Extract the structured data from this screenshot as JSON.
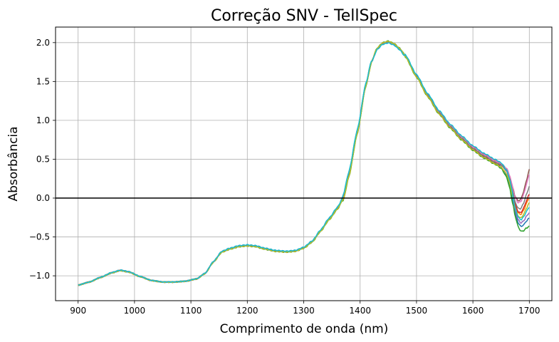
{
  "chart_data": {
    "type": "line",
    "title": "Correção SNV - TellSpec",
    "xlabel": "Comprimento de onda (nm)",
    "ylabel": "Absorbância",
    "xlim": [
      860,
      1740
    ],
    "ylim": [
      -1.32,
      2.2
    ],
    "x_ticks": [
      900,
      1000,
      1100,
      1200,
      1300,
      1400,
      1500,
      1600,
      1700
    ],
    "y_ticks": [
      -1.0,
      -0.5,
      0.0,
      0.5,
      1.0,
      1.5,
      2.0
    ],
    "x_tick_labels": [
      "900",
      "1000",
      "1100",
      "1200",
      "1300",
      "1400",
      "1500",
      "1600",
      "1700"
    ],
    "y_tick_labels": [
      "−1.0",
      "−0.5",
      "0.0",
      "0.5",
      "1.0",
      "1.5",
      "2.0"
    ],
    "grid": true,
    "reference_line": {
      "y": 0,
      "color": "#000000"
    },
    "colors": [
      "#1f77b4",
      "#ff7f0e",
      "#2ca02c",
      "#d62728",
      "#9467bd",
      "#8c564b",
      "#e377c2",
      "#7f7f7f",
      "#bcbd22",
      "#17becf"
    ],
    "base_spectrum": {
      "x": [
        900,
        920,
        940,
        960,
        975,
        990,
        1010,
        1030,
        1050,
        1070,
        1090,
        1110,
        1125,
        1140,
        1155,
        1170,
        1185,
        1200,
        1215,
        1230,
        1250,
        1270,
        1285,
        1300,
        1315,
        1330,
        1345,
        1360,
        1370,
        1380,
        1395,
        1410,
        1420,
        1430,
        1440,
        1450,
        1460,
        1470,
        1480,
        1500,
        1520,
        1540,
        1560,
        1580,
        1600,
        1620,
        1640,
        1650,
        1660,
        1665,
        1670,
        1675,
        1680,
        1685,
        1690,
        1695,
        1700
      ],
      "y": [
        -1.12,
        -1.08,
        -1.02,
        -0.96,
        -0.93,
        -0.95,
        -1.01,
        -1.06,
        -1.08,
        -1.08,
        -1.07,
        -1.04,
        -0.97,
        -0.82,
        -0.69,
        -0.65,
        -0.62,
        -0.61,
        -0.62,
        -0.65,
        -0.68,
        -0.69,
        -0.68,
        -0.64,
        -0.56,
        -0.42,
        -0.27,
        -0.13,
        0.0,
        0.3,
        0.85,
        1.45,
        1.75,
        1.92,
        1.99,
        2.01,
        1.98,
        1.92,
        1.83,
        1.57,
        1.32,
        1.1,
        0.92,
        0.77,
        0.64,
        0.54,
        0.46,
        0.42,
        0.33,
        0.22,
        0.05,
        -0.12,
        -0.22,
        -0.25,
        -0.2,
        -0.12,
        -0.05
      ]
    },
    "series": [
      {
        "offset": -0.02,
        "tail": -0.2
      },
      {
        "offset": 0.03,
        "tail": 0.05
      },
      {
        "offset": -0.04,
        "tail": -0.3
      },
      {
        "offset": 0.01,
        "tail": 0.1
      },
      {
        "offset": 0.04,
        "tail": -0.15
      },
      {
        "offset": -0.01,
        "tail": 0.42
      },
      {
        "offset": 0.02,
        "tail": 0.35
      },
      {
        "offset": 0.0,
        "tail": 0.2
      },
      {
        "offset": -0.03,
        "tail": 0.0
      },
      {
        "offset": 0.05,
        "tail": -0.08
      }
    ]
  }
}
